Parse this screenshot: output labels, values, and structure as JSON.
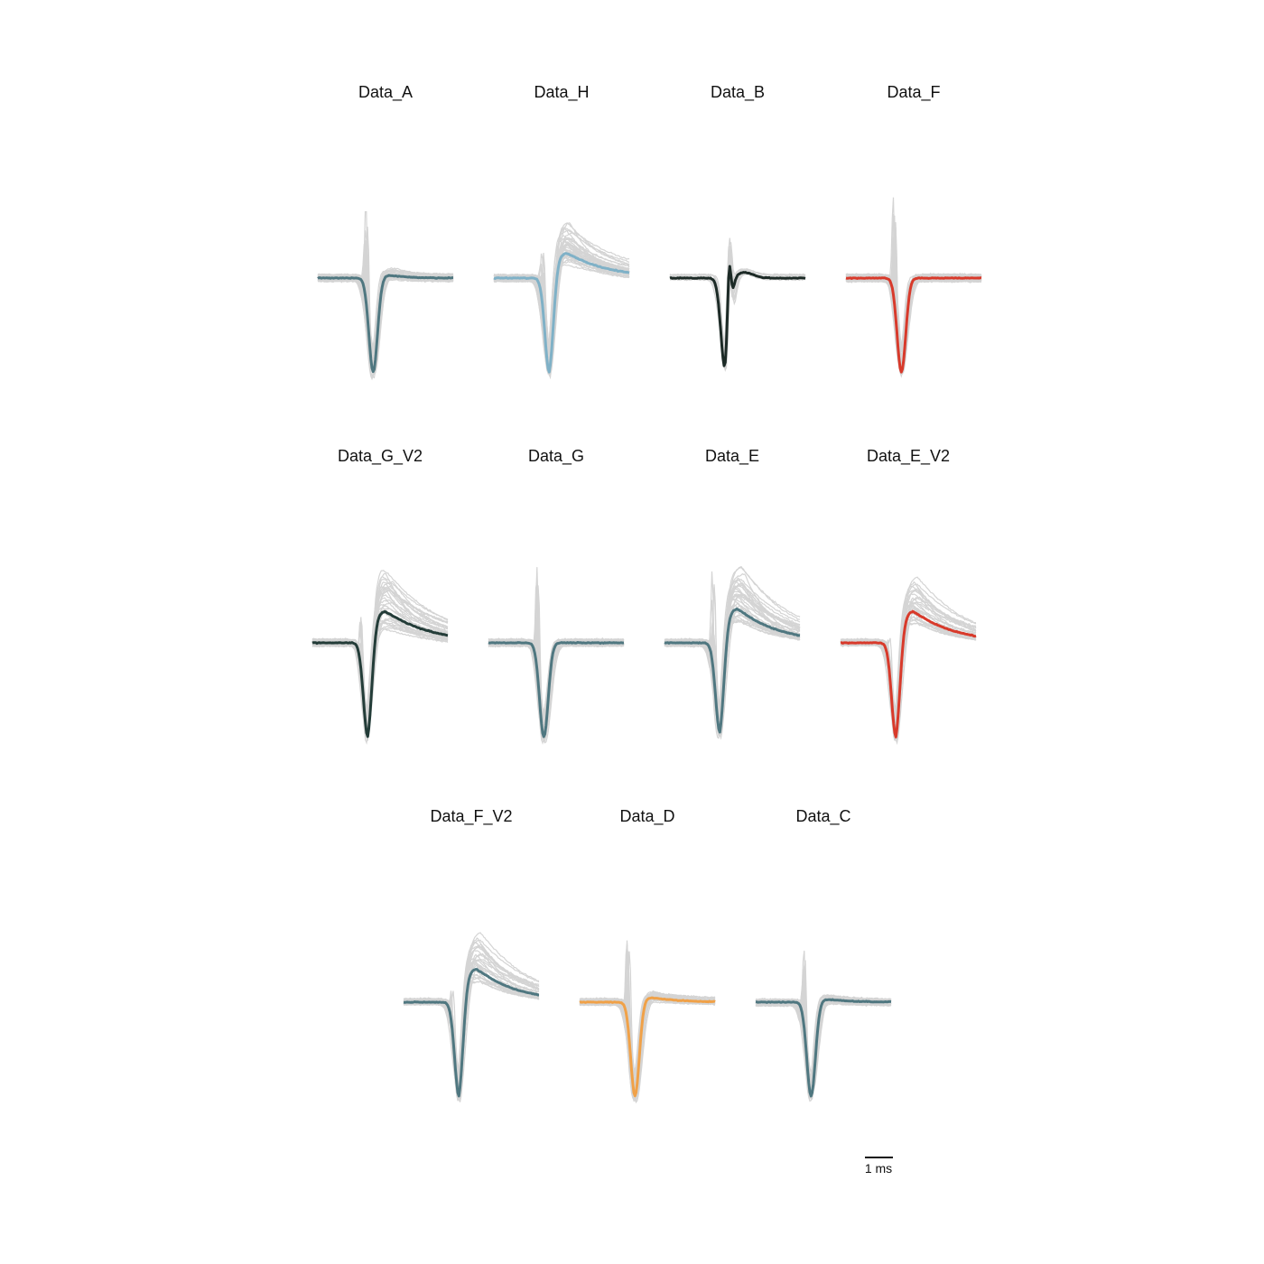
{
  "chart_data": {
    "type": "line",
    "scale_bar": {
      "label": "1 ms",
      "duration_ms": 1
    },
    "trace_color_gray": "#d4d4d4",
    "panels": [
      {
        "title": "Data_A",
        "color": "#4f7780",
        "trough": -1.0,
        "peak": 0.03,
        "spike": 1.05,
        "decay": 0.6,
        "spread": 0.55,
        "n": 36
      },
      {
        "title": "Data_H",
        "color": "#7fb1c7",
        "trough": -1.0,
        "peak": 0.28,
        "spike": 0.5,
        "decay": 1.3,
        "spread": 0.45,
        "n": 36
      },
      {
        "title": "Data_B",
        "color": "#1c2a26",
        "trough": -1.0,
        "peak": 0.0,
        "spike": 0.75,
        "decay": 0.5,
        "spread": 0.12,
        "n": 12,
        "biphasic": true
      },
      {
        "title": "Data_F",
        "color": "#d83a2b",
        "trough": -1.0,
        "peak": 0.0,
        "spike": 1.15,
        "decay": 0.6,
        "spread": 0.6,
        "n": 40
      },
      {
        "title": "Data_G_V2",
        "color": "#233c38",
        "trough": -1.0,
        "peak": 0.35,
        "spike": 0.6,
        "decay": 1.4,
        "spread": 0.35,
        "n": 32
      },
      {
        "title": "Data_G",
        "color": "#4f7780",
        "trough": -1.0,
        "peak": 0.0,
        "spike": 1.15,
        "decay": 0.6,
        "spread": 0.6,
        "n": 40
      },
      {
        "title": "Data_E",
        "color": "#4f7780",
        "trough": -0.95,
        "peak": 0.38,
        "spike": 1.15,
        "decay": 1.3,
        "spread": 0.5,
        "n": 36
      },
      {
        "title": "Data_E_V2",
        "color": "#d83a2b",
        "trough": -1.0,
        "peak": 0.35,
        "spike": 0.35,
        "decay": 1.3,
        "spread": 0.3,
        "n": 28
      },
      {
        "title": "Data_F_V2",
        "color": "#4f7780",
        "trough": -1.0,
        "peak": 0.37,
        "spike": 0.45,
        "decay": 1.3,
        "spread": 0.3,
        "n": 28
      },
      {
        "title": "Data_D",
        "color": "#f0a148",
        "trough": -1.0,
        "peak": 0.05,
        "spike": 1.05,
        "decay": 0.9,
        "spread": 0.55,
        "n": 40
      },
      {
        "title": "Data_C",
        "color": "#4f7780",
        "trough": -1.0,
        "peak": 0.03,
        "spike": 0.8,
        "decay": 0.8,
        "spread": 0.45,
        "n": 34
      }
    ]
  }
}
